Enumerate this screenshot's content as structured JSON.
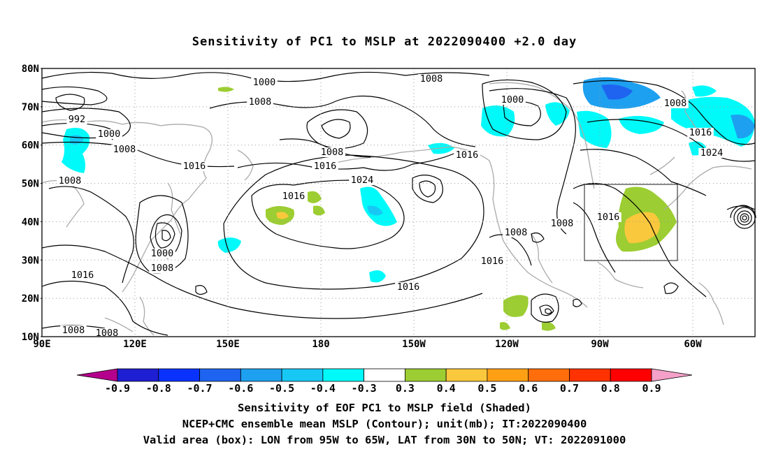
{
  "title": "Sensitivity of PC1 to MSLP at 2022090400 +2.0 day",
  "latitude_labels": [
    "80N",
    "70N",
    "60N",
    "50N",
    "40N",
    "30N",
    "20N",
    "10N"
  ],
  "longitude_labels": [
    "90E",
    "120E",
    "150E",
    "180",
    "150W",
    "120W",
    "90W",
    "60W"
  ],
  "contour_labels": [
    "1000",
    "1008",
    "1008",
    "992",
    "1000",
    "1008",
    "1016",
    "1016",
    "1008",
    "1016",
    "1024",
    "1016",
    "1000",
    "1008",
    "1000",
    "1008",
    "1016",
    "1008",
    "1016",
    "1016",
    "1008",
    "1008",
    "1016",
    "1024",
    "1008",
    "1008",
    "1016",
    "1016"
  ],
  "colorbar": {
    "labels": [
      "-0.9",
      "-0.8",
      "-0.7",
      "-0.6",
      "-0.5",
      "-0.4",
      "-0.3",
      "0.3",
      "0.4",
      "0.5",
      "0.6",
      "0.7",
      "0.8",
      "0.9"
    ],
    "colors": [
      "#b4008c",
      "#1e1ed2",
      "#0a32ff",
      "#1e64f0",
      "#1ea0f0",
      "#17c8f5",
      "#00fafa",
      "#ffffff",
      "#9ccd32",
      "#fac83c",
      "#ffa014",
      "#ff6e0a",
      "#ff3200",
      "#ff0000",
      "#f5a0c8"
    ]
  },
  "captions": [
    "Sensitivity of EOF PC1 to MSLP field (Shaded)",
    "NCEP+CMC ensemble mean MSLP (Contour); unit(mb); IT:2022090400",
    "Valid area (box): LON from 95W to 65W, LAT from 30N to 50N; VT: 2022091000"
  ]
}
